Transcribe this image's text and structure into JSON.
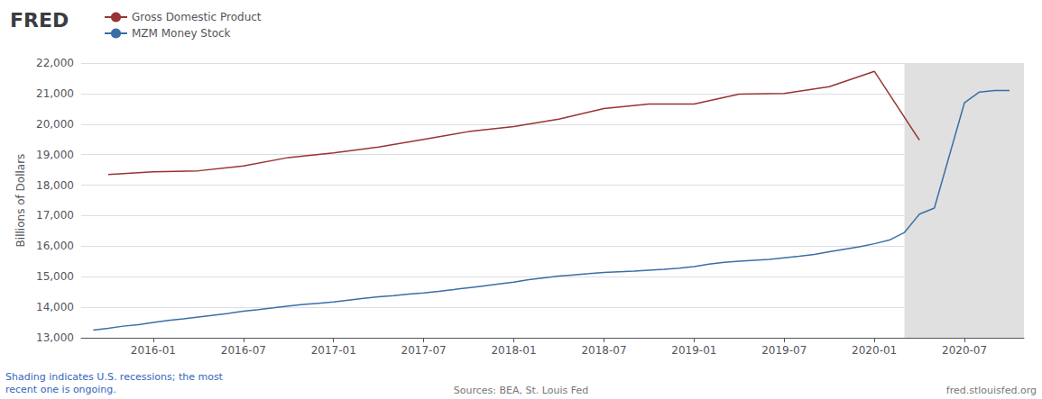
{
  "chart_data": {
    "type": "line",
    "title": "FRED",
    "ylabel": "Billions of Dollars",
    "annotations": [
      "Shading indicates U.S. recessions; the most\nrecent one is ongoing.",
      "Sources: BEA, St. Louis Fed",
      "fred.stlouisfed.org"
    ],
    "legend": "top-left",
    "grid": true,
    "xlim": [
      2015.6,
      2020.83
    ],
    "xticks": [
      {
        "value": 2016.0,
        "label": "2016-01"
      },
      {
        "value": 2016.5,
        "label": "2016-07"
      },
      {
        "value": 2017.0,
        "label": "2017-01"
      },
      {
        "value": 2017.5,
        "label": "2017-07"
      },
      {
        "value": 2018.0,
        "label": "2018-01"
      },
      {
        "value": 2018.5,
        "label": "2018-07"
      },
      {
        "value": 2019.0,
        "label": "2019-01"
      },
      {
        "value": 2019.5,
        "label": "2019-07"
      },
      {
        "value": 2020.0,
        "label": "2020-01"
      },
      {
        "value": 2020.5,
        "label": "2020-07"
      }
    ],
    "ylim": [
      13000,
      22000
    ],
    "yticks": [
      {
        "value": 13000,
        "label": "13,000"
      },
      {
        "value": 14000,
        "label": "14,000"
      },
      {
        "value": 15000,
        "label": "15,000"
      },
      {
        "value": 16000,
        "label": "16,000"
      },
      {
        "value": 17000,
        "label": "17,000"
      },
      {
        "value": 18000,
        "label": "18,000"
      },
      {
        "value": 19000,
        "label": "19,000"
      },
      {
        "value": 20000,
        "label": "20,000"
      },
      {
        "value": 21000,
        "label": "21,000"
      },
      {
        "value": 22000,
        "label": "22,000"
      }
    ],
    "recession": {
      "start": 2020.167,
      "end": 2020.83,
      "color": "#e0e0e0"
    },
    "series": [
      {
        "name": "Gross Domestic Product",
        "color": "#993333",
        "x": [
          2015.75,
          2016.0,
          2016.25,
          2016.5,
          2016.75,
          2017.0,
          2017.25,
          2017.5,
          2017.75,
          2018.0,
          2018.25,
          2018.5,
          2018.75,
          2019.0,
          2019.25,
          2019.5,
          2019.75,
          2020.0,
          2020.25
        ],
        "values": [
          18350,
          18440,
          18470,
          18630,
          18905,
          19057,
          19250,
          19500,
          19754,
          19918,
          20163,
          20510,
          20658,
          20658,
          20984,
          21001,
          21227,
          21729,
          19477
        ]
      },
      {
        "name": "MZM Money Stock",
        "color": "#3a6ea8",
        "x": [
          2015.667,
          2015.75,
          2015.833,
          2015.917,
          2016.0,
          2016.083,
          2016.167,
          2016.25,
          2016.333,
          2016.417,
          2016.5,
          2016.583,
          2016.667,
          2016.75,
          2016.833,
          2016.917,
          2017.0,
          2017.083,
          2017.167,
          2017.25,
          2017.333,
          2017.417,
          2017.5,
          2017.583,
          2017.667,
          2017.75,
          2017.833,
          2017.917,
          2018.0,
          2018.083,
          2018.167,
          2018.25,
          2018.333,
          2018.417,
          2018.5,
          2018.583,
          2018.667,
          2018.75,
          2018.833,
          2018.917,
          2019.0,
          2019.083,
          2019.167,
          2019.25,
          2019.333,
          2019.417,
          2019.5,
          2019.583,
          2019.667,
          2019.75,
          2019.833,
          2019.917,
          2020.0,
          2020.083,
          2020.167,
          2020.25,
          2020.333,
          2020.5,
          2020.583,
          2020.667,
          2020.75
        ],
        "values": [
          13250,
          13310,
          13380,
          13430,
          13500,
          13570,
          13620,
          13680,
          13740,
          13800,
          13870,
          13920,
          13980,
          14040,
          14090,
          14130,
          14170,
          14230,
          14290,
          14340,
          14380,
          14430,
          14470,
          14520,
          14580,
          14640,
          14700,
          14760,
          14820,
          14900,
          14960,
          15020,
          15060,
          15100,
          15140,
          15160,
          15180,
          15210,
          15240,
          15280,
          15330,
          15410,
          15470,
          15510,
          15540,
          15570,
          15620,
          15670,
          15730,
          15820,
          15900,
          15980,
          16080,
          16200,
          16450,
          17050,
          17250,
          20700,
          21050,
          21100,
          21100
        ]
      }
    ]
  }
}
